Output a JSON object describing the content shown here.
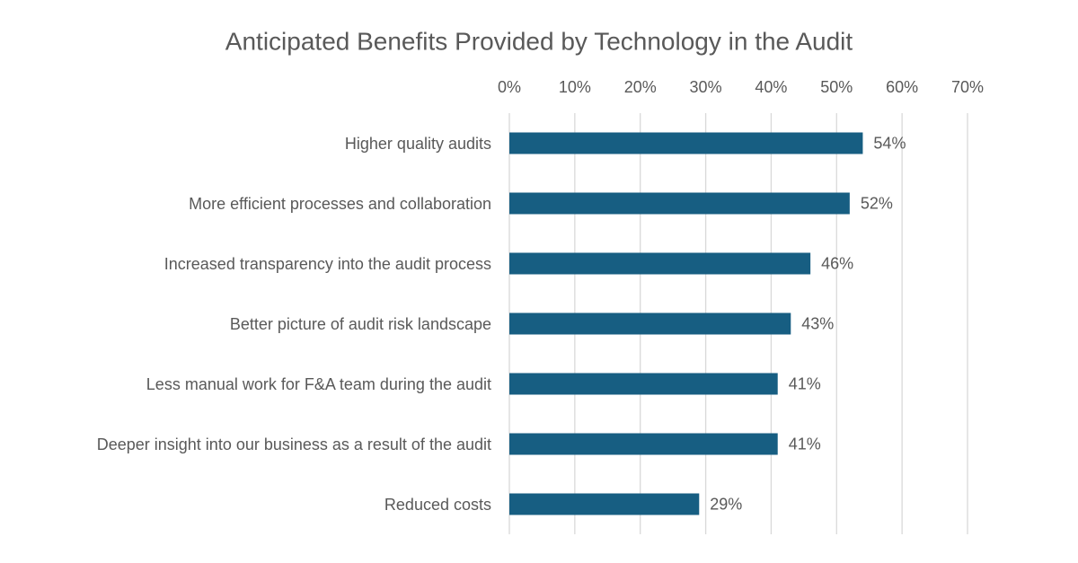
{
  "chart_data": {
    "type": "bar",
    "orientation": "horizontal",
    "title": "Anticipated Benefits Provided by Technology in the Audit",
    "categories": [
      "Higher quality audits",
      "More efficient processes and collaboration",
      "Increased transparency into the audit process",
      "Better picture of audit risk landscape",
      "Less manual work for F&A team during the audit",
      "Deeper insight into our business as a result of the audit",
      "Reduced costs"
    ],
    "values": [
      54,
      52,
      46,
      43,
      41,
      41,
      29
    ],
    "value_labels": [
      "54%",
      "52%",
      "46%",
      "43%",
      "41%",
      "41%",
      "29%"
    ],
    "color": "#175e82",
    "xlim": [
      0,
      70
    ],
    "xticks": [
      {
        "value": 0,
        "label": "0%"
      },
      {
        "value": 10,
        "label": "10%"
      },
      {
        "value": 20,
        "label": "20%"
      },
      {
        "value": 30,
        "label": "30%"
      },
      {
        "value": 40,
        "label": "40%"
      },
      {
        "value": 50,
        "label": "50%"
      },
      {
        "value": 60,
        "label": "60%"
      },
      {
        "value": 70,
        "label": "70%"
      }
    ],
    "grid": true
  }
}
